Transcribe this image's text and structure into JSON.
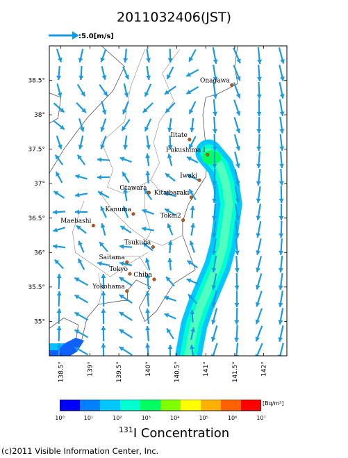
{
  "title": "2011032406(JST)",
  "reference_vector": {
    "label": ":5.0[m/s]",
    "color": "#1a9ae0"
  },
  "map": {
    "lon_range": [
      138.3,
      142.4
    ],
    "lat_range": [
      34.5,
      39.0
    ],
    "x_ticks": [
      "138.5°",
      "139°",
      "139.5°",
      "140°",
      "140.5°",
      "141°",
      "141.5°",
      "142°"
    ],
    "x_tick_values": [
      138.5,
      139.0,
      139.5,
      140.0,
      140.5,
      141.0,
      141.5,
      142.0
    ],
    "y_ticks": [
      "38.5°",
      "38°",
      "37.5°",
      "37°",
      "36.5°",
      "36°",
      "35.5°",
      "35°"
    ],
    "y_tick_values": [
      38.5,
      38.0,
      37.5,
      37.0,
      36.5,
      36.0,
      35.5,
      35.0
    ],
    "cities": [
      {
        "name": "Onagawa",
        "lon": 141.45,
        "lat": 38.43
      },
      {
        "name": "Iitate",
        "lon": 140.72,
        "lat": 37.64
      },
      {
        "name": "Fukushima I",
        "lon": 141.03,
        "lat": 37.42
      },
      {
        "name": "Iwaki",
        "lon": 140.89,
        "lat": 37.05
      },
      {
        "name": "Otawara",
        "lon": 140.02,
        "lat": 36.87
      },
      {
        "name": "Kitaibaraki",
        "lon": 140.75,
        "lat": 36.8
      },
      {
        "name": "Kanuma",
        "lon": 139.75,
        "lat": 36.56
      },
      {
        "name": "Tokai2",
        "lon": 140.61,
        "lat": 36.47
      },
      {
        "name": "Maebashi",
        "lon": 139.06,
        "lat": 36.39
      },
      {
        "name": "Tsukuba",
        "lon": 140.09,
        "lat": 36.08
      },
      {
        "name": "Saitama",
        "lon": 139.64,
        "lat": 35.86
      },
      {
        "name": "Tokyo",
        "lon": 139.69,
        "lat": 35.69
      },
      {
        "name": "Chiba",
        "lon": 140.11,
        "lat": 35.61
      },
      {
        "name": "Yokohama",
        "lon": 139.64,
        "lat": 35.44
      }
    ],
    "wind_color": "#1a9ae0",
    "land_color": "#ffffff",
    "coast_color": "#555555"
  },
  "colorbar": {
    "unit": "[Bq/m³]",
    "ticks": [
      "10⁰",
      "10¹",
      "10²",
      "10³",
      "10⁴",
      "10⁵",
      "10⁶",
      "10⁷"
    ],
    "colors": [
      "#0000ff",
      "#0080ff",
      "#00c8ff",
      "#00ffd0",
      "#00ff60",
      "#80ff00",
      "#ffff00",
      "#ffb000",
      "#ff6000",
      "#ff0000"
    ],
    "title_prefix": "131",
    "title_suffix": "I Concentration"
  },
  "copyright": "(c)2011 Visible Information Center, Inc."
}
